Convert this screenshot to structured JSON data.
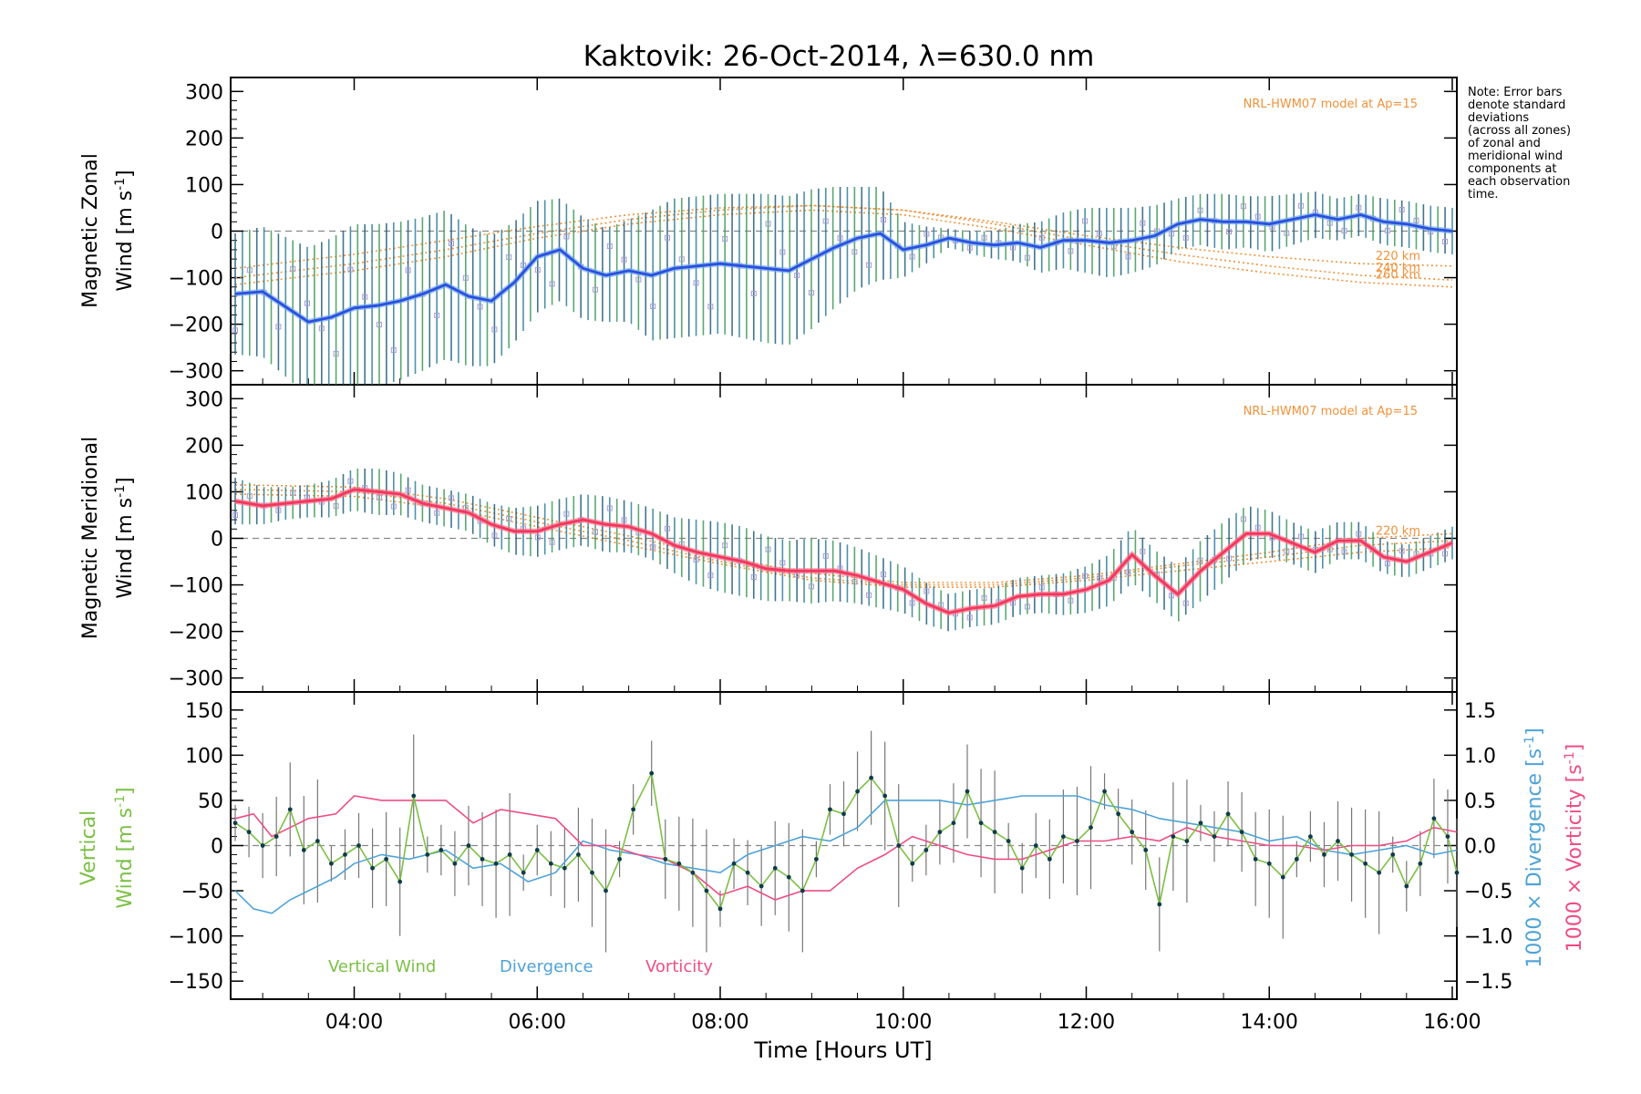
{
  "title": "Kaktovik: 26-Oct-2014, λ=630.0 nm",
  "note_lines": [
    "Note: Error bars",
    "denote standard",
    "deviations",
    "(across all zones)",
    "of zonal and",
    "meridional wind",
    "components at",
    "each observation",
    "time."
  ],
  "colors": {
    "zonal": "#2a4fe0",
    "zonal_light": "#6fa8ea",
    "meridional": "#f2375e",
    "model": "#f0923a",
    "vertical": "#7bc043",
    "divergence": "#4ea3d8",
    "vorticity": "#ee4d86",
    "errorbar": "#1f5d7a",
    "scatter": "#a79ad6",
    "zero": "#888888"
  },
  "chart_data": [
    {
      "id": "zonal",
      "type": "line",
      "ylabel_line1": "Magnetic Zonal",
      "ylabel_line2_prefix": "Wind ",
      "ylabel_unit": "[m s",
      "ylabel_unit_sup": "-1",
      "ylabel_unit_close": "]",
      "ylim": [
        -330,
        330
      ],
      "yticks": [
        -300,
        -200,
        -100,
        0,
        100,
        200,
        300
      ],
      "model_label": "NRL-HWM07 model at Ap=15",
      "model_altitude_labels": [
        "220 km",
        "240 km",
        "260 km"
      ],
      "series": [
        {
          "kind": "mean",
          "x": [
            2.7,
            3.0,
            3.5,
            3.75,
            4.0,
            4.25,
            4.5,
            4.75,
            5.0,
            5.25,
            5.5,
            5.75,
            6.0,
            6.25,
            6.5,
            6.75,
            7.0,
            7.25,
            7.5,
            7.75,
            8.0,
            8.25,
            8.5,
            8.75,
            9.0,
            9.25,
            9.5,
            9.75,
            10.0,
            10.25,
            10.5,
            10.75,
            11.0,
            11.25,
            11.5,
            11.75,
            12.0,
            12.25,
            12.5,
            12.75,
            13.0,
            13.25,
            13.5,
            13.75,
            14.0,
            14.25,
            14.5,
            14.75,
            15.0,
            15.25,
            15.5,
            15.75,
            16.0
          ],
          "y": [
            -135,
            -130,
            -195,
            -185,
            -165,
            -160,
            -150,
            -135,
            -115,
            -140,
            -150,
            -110,
            -55,
            -40,
            -80,
            -95,
            -85,
            -95,
            -80,
            -75,
            -70,
            -75,
            -80,
            -85,
            -60,
            -35,
            -15,
            -5,
            -40,
            -30,
            -15,
            -25,
            -30,
            -25,
            -35,
            -20,
            -20,
            -25,
            -20,
            -10,
            15,
            25,
            20,
            20,
            15,
            25,
            35,
            25,
            35,
            20,
            15,
            5,
            0
          ],
          "err": [
            130,
            140,
            160,
            170,
            180,
            175,
            170,
            165,
            160,
            150,
            140,
            130,
            120,
            110,
            110,
            100,
            110,
            140,
            150,
            150,
            150,
            155,
            160,
            160,
            150,
            130,
            110,
            100,
            60,
            40,
            20,
            25,
            30,
            40,
            55,
            60,
            70,
            75,
            70,
            65,
            55,
            55,
            60,
            55,
            60,
            55,
            50,
            45,
            45,
            50,
            50,
            50,
            50
          ]
        },
        {
          "kind": "model",
          "name": "220 km",
          "x": [
            2.7,
            4.0,
            5.0,
            6.0,
            7.0,
            8.0,
            9.0,
            10.0,
            11.0,
            12.0,
            13.0,
            14.0,
            15.0,
            16.0
          ],
          "y": [
            -80,
            -50,
            -20,
            10,
            35,
            50,
            55,
            45,
            20,
            -10,
            -35,
            -55,
            -70,
            -75
          ]
        },
        {
          "kind": "model",
          "name": "240 km",
          "x": [
            2.7,
            4.0,
            5.0,
            6.0,
            7.0,
            8.0,
            9.0,
            10.0,
            11.0,
            12.0,
            13.0,
            14.0,
            15.0,
            16.0
          ],
          "y": [
            -100,
            -70,
            -40,
            -5,
            25,
            45,
            55,
            45,
            15,
            -20,
            -50,
            -75,
            -95,
            -105
          ]
        },
        {
          "kind": "model",
          "name": "260 km",
          "x": [
            2.7,
            4.0,
            5.0,
            6.0,
            7.0,
            8.0,
            9.0,
            10.0,
            11.0,
            12.0,
            13.0,
            14.0,
            15.0,
            16.0
          ],
          "y": [
            -115,
            -85,
            -55,
            -15,
            15,
            35,
            45,
            35,
            5,
            -30,
            -65,
            -90,
            -110,
            -120
          ]
        }
      ]
    },
    {
      "id": "meridional",
      "type": "line",
      "ylabel_line1": "Magnetic Meridional",
      "ylabel_line2_prefix": "Wind ",
      "ylabel_unit": "[m s",
      "ylabel_unit_sup": "-1",
      "ylabel_unit_close": "]",
      "ylim": [
        -330,
        330
      ],
      "yticks": [
        -300,
        -200,
        -100,
        0,
        100,
        200,
        300
      ],
      "model_label": "NRL-HWM07 model at Ap=15",
      "model_altitude_labels": [
        "220 km"
      ],
      "series": [
        {
          "kind": "mean",
          "x": [
            2.7,
            3.0,
            3.25,
            3.5,
            3.75,
            4.0,
            4.25,
            4.5,
            4.75,
            5.0,
            5.25,
            5.5,
            5.75,
            6.0,
            6.25,
            6.5,
            6.75,
            7.0,
            7.25,
            7.5,
            7.75,
            8.0,
            8.25,
            8.5,
            8.75,
            9.0,
            9.25,
            9.5,
            9.75,
            10.0,
            10.25,
            10.5,
            10.75,
            11.0,
            11.25,
            11.5,
            11.75,
            12.0,
            12.25,
            12.5,
            12.75,
            13.0,
            13.25,
            13.5,
            13.75,
            14.0,
            14.25,
            14.5,
            14.75,
            15.0,
            15.25,
            15.5,
            15.75,
            16.0
          ],
          "y": [
            80,
            70,
            75,
            80,
            85,
            105,
            100,
            95,
            75,
            65,
            55,
            30,
            15,
            15,
            30,
            40,
            30,
            25,
            10,
            -15,
            -30,
            -40,
            -50,
            -65,
            -70,
            -70,
            -70,
            -80,
            -95,
            -110,
            -140,
            -160,
            -150,
            -145,
            -125,
            -120,
            -120,
            -110,
            -90,
            -35,
            -80,
            -120,
            -70,
            -30,
            10,
            10,
            -10,
            -30,
            -5,
            -5,
            -40,
            -50,
            -30,
            -10
          ],
          "err": [
            50,
            40,
            35,
            35,
            40,
            45,
            50,
            45,
            40,
            40,
            40,
            45,
            50,
            55,
            55,
            55,
            60,
            55,
            55,
            60,
            70,
            75,
            75,
            70,
            65,
            70,
            65,
            60,
            55,
            50,
            45,
            40,
            40,
            40,
            40,
            40,
            45,
            50,
            55,
            60,
            55,
            60,
            65,
            65,
            60,
            50,
            45,
            45,
            40,
            40,
            35,
            35,
            35,
            35
          ]
        },
        {
          "kind": "model",
          "name": "220 km",
          "x": [
            2.7,
            4.0,
            5.0,
            6.0,
            7.0,
            8.0,
            9.0,
            10.0,
            11.0,
            12.0,
            13.0,
            14.0,
            15.0,
            16.0
          ],
          "y": [
            115,
            110,
            85,
            45,
            5,
            -40,
            -75,
            -95,
            -95,
            -80,
            -55,
            -30,
            0,
            10
          ]
        },
        {
          "kind": "model",
          "name": "240 km",
          "x": [
            2.7,
            4.0,
            5.0,
            6.0,
            7.0,
            8.0,
            9.0,
            10.0,
            11.0,
            12.0,
            13.0,
            14.0,
            15.0,
            16.0
          ],
          "y": [
            105,
            100,
            75,
            35,
            -5,
            -50,
            -85,
            -100,
            -100,
            -85,
            -60,
            -40,
            -15,
            -5
          ]
        },
        {
          "kind": "model",
          "name": "260 km",
          "x": [
            2.7,
            4.0,
            5.0,
            6.0,
            7.0,
            8.0,
            9.0,
            10.0,
            11.0,
            12.0,
            13.0,
            14.0,
            15.0,
            16.0
          ],
          "y": [
            95,
            90,
            65,
            25,
            -15,
            -55,
            -90,
            -105,
            -105,
            -90,
            -70,
            -50,
            -30,
            -20
          ]
        }
      ]
    },
    {
      "id": "vertical",
      "type": "line",
      "xlabel": "Time [Hours UT]",
      "xlim": [
        2.65,
        16.05
      ],
      "xticks": [
        "04:00",
        "06:00",
        "08:00",
        "10:00",
        "12:00",
        "14:00",
        "16:00"
      ],
      "xtick_values": [
        4,
        6,
        8,
        10,
        12,
        14,
        16
      ],
      "ylabel_line1": "Vertical",
      "ylabel_line2_prefix": "Wind ",
      "ylabel_unit": "[m s",
      "ylabel_unit_sup": "-1",
      "ylabel_unit_close": "]",
      "ylim": [
        -170,
        170
      ],
      "yticks": [
        -150,
        -100,
        -50,
        0,
        50,
        100,
        150
      ],
      "right_ylim": [
        -1.7,
        1.7
      ],
      "right_yticks": [
        "-1.5",
        "-1.0",
        "-0.5",
        "0.0",
        "0.5",
        "1.0",
        "1.5"
      ],
      "right_ylabel_div": "1000 × Divergence",
      "right_ylabel_vor": "1000 × Vorticity",
      "right_unit": "[s",
      "right_unit_sup": "-1",
      "right_unit_close": "]",
      "legend": [
        "Vertical Wind",
        "Divergence",
        "Vorticity"
      ],
      "series": [
        {
          "name": "Vertical Wind",
          "axis": "left",
          "x": [
            2.7,
            2.85,
            3.0,
            3.15,
            3.3,
            3.45,
            3.6,
            3.75,
            3.9,
            4.05,
            4.2,
            4.35,
            4.5,
            4.65,
            4.8,
            4.95,
            5.1,
            5.25,
            5.4,
            5.55,
            5.7,
            5.85,
            6.0,
            6.15,
            6.3,
            6.45,
            6.6,
            6.75,
            6.9,
            7.05,
            7.25,
            7.4,
            7.55,
            7.7,
            7.85,
            8.0,
            8.15,
            8.3,
            8.45,
            8.6,
            8.75,
            8.9,
            9.05,
            9.2,
            9.35,
            9.5,
            9.65,
            9.8,
            9.95,
            10.1,
            10.25,
            10.4,
            10.55,
            10.7,
            10.85,
            11.0,
            11.15,
            11.3,
            11.45,
            11.6,
            11.75,
            11.9,
            12.05,
            12.2,
            12.35,
            12.5,
            12.65,
            12.8,
            12.95,
            13.1,
            13.25,
            13.4,
            13.55,
            13.7,
            13.85,
            14.0,
            14.15,
            14.3,
            14.45,
            14.6,
            14.75,
            14.9,
            15.05,
            15.2,
            15.35,
            15.5,
            15.65,
            15.8,
            15.95,
            16.05
          ],
          "y": [
            25,
            15,
            0,
            10,
            40,
            -5,
            5,
            -20,
            -10,
            0,
            -25,
            -15,
            -40,
            55,
            -10,
            -5,
            -20,
            0,
            -15,
            -20,
            -10,
            -30,
            -5,
            -20,
            -25,
            -10,
            -30,
            -50,
            -15,
            40,
            80,
            -15,
            -20,
            -30,
            -50,
            -70,
            -20,
            -30,
            -45,
            -25,
            -35,
            -50,
            -15,
            40,
            35,
            60,
            75,
            55,
            0,
            -20,
            -5,
            15,
            25,
            60,
            25,
            15,
            5,
            -25,
            0,
            -15,
            10,
            5,
            20,
            60,
            35,
            15,
            -5,
            -65,
            10,
            5,
            25,
            10,
            35,
            15,
            -15,
            -20,
            -35,
            -15,
            10,
            -10,
            5,
            -10,
            -20,
            -30,
            -10,
            -45,
            -20,
            30,
            10,
            -30
          ]
        },
        {
          "name": "Divergence",
          "axis": "right",
          "x": [
            2.7,
            2.9,
            3.1,
            3.3,
            3.5,
            3.8,
            4.0,
            4.3,
            4.6,
            5.0,
            5.3,
            5.6,
            5.9,
            6.2,
            6.5,
            6.8,
            7.1,
            7.4,
            7.7,
            8.0,
            8.3,
            8.6,
            8.9,
            9.2,
            9.5,
            9.8,
            10.1,
            10.4,
            10.7,
            11.0,
            11.3,
            11.6,
            11.9,
            12.2,
            12.5,
            12.8,
            13.1,
            13.4,
            13.7,
            14.0,
            14.3,
            14.6,
            14.9,
            15.2,
            15.5,
            15.8,
            16.05
          ],
          "y": [
            -0.5,
            -0.7,
            -0.75,
            -0.6,
            -0.5,
            -0.35,
            -0.2,
            -0.1,
            -0.15,
            -0.05,
            -0.25,
            -0.2,
            -0.4,
            -0.3,
            0.05,
            -0.05,
            -0.1,
            -0.2,
            -0.25,
            -0.3,
            -0.1,
            0.0,
            0.1,
            0.05,
            0.2,
            0.5,
            0.5,
            0.5,
            0.45,
            0.5,
            0.55,
            0.55,
            0.55,
            0.45,
            0.4,
            0.3,
            0.25,
            0.2,
            0.15,
            0.05,
            0.1,
            -0.05,
            -0.1,
            -0.05,
            0.0,
            -0.1,
            -0.05
          ]
        },
        {
          "name": "Vorticity",
          "axis": "right",
          "x": [
            2.7,
            2.9,
            3.1,
            3.3,
            3.5,
            3.8,
            4.0,
            4.3,
            4.6,
            5.0,
            5.3,
            5.6,
            5.9,
            6.2,
            6.5,
            6.8,
            7.1,
            7.4,
            7.7,
            8.0,
            8.3,
            8.6,
            8.9,
            9.2,
            9.5,
            9.8,
            10.1,
            10.4,
            10.7,
            11.0,
            11.3,
            11.6,
            11.9,
            12.2,
            12.5,
            12.8,
            13.1,
            13.4,
            13.7,
            14.0,
            14.3,
            14.6,
            14.9,
            15.2,
            15.5,
            15.8,
            16.05
          ],
          "y": [
            0.3,
            0.35,
            0.1,
            0.2,
            0.3,
            0.35,
            0.55,
            0.5,
            0.5,
            0.5,
            0.25,
            0.4,
            0.35,
            0.3,
            0.0,
            0.0,
            -0.1,
            -0.15,
            -0.3,
            -0.55,
            -0.45,
            -0.6,
            -0.5,
            -0.5,
            -0.25,
            -0.1,
            0.1,
            0.0,
            -0.1,
            -0.15,
            -0.15,
            -0.05,
            0.05,
            0.05,
            0.1,
            0.05,
            0.2,
            0.1,
            0.05,
            0.0,
            0.0,
            -0.05,
            0.0,
            0.0,
            0.05,
            0.2,
            0.15
          ]
        }
      ]
    }
  ]
}
